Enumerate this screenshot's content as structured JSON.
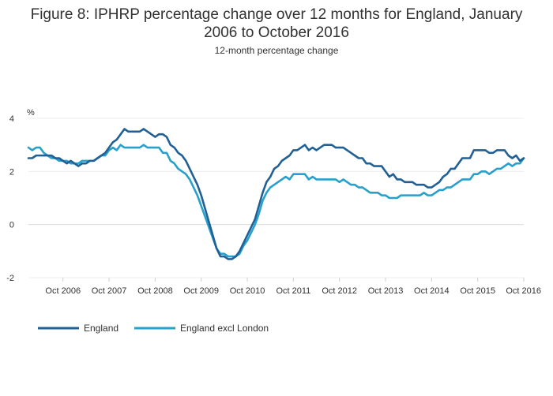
{
  "chart_data": {
    "type": "line",
    "title": "Figure 8: IPHRP percentage change over 12 months for England, January 2006 to October 2016",
    "subtitle": "12-month percentage change",
    "ylabel": "%",
    "xlabel": "",
    "ylim": [
      -2,
      4
    ],
    "yticks": [
      4,
      2,
      0,
      -2
    ],
    "xlim": [
      "2006-01",
      "2016-10"
    ],
    "xticks": [
      {
        "date": "2006-10",
        "label": "Oct 2006"
      },
      {
        "date": "2007-10",
        "label": "Oct 2007"
      },
      {
        "date": "2008-10",
        "label": "Oct 2008"
      },
      {
        "date": "2009-10",
        "label": "Oct 2009"
      },
      {
        "date": "2010-10",
        "label": "Oct 2010"
      },
      {
        "date": "2011-10",
        "label": "Oct 2011"
      },
      {
        "date": "2012-10",
        "label": "Oct 2012"
      },
      {
        "date": "2013-10",
        "label": "Oct 2013"
      },
      {
        "date": "2014-10",
        "label": "Oct 2014"
      },
      {
        "date": "2015-10",
        "label": "Oct 2015"
      },
      {
        "date": "2016-10",
        "label": "Oct 2016"
      }
    ],
    "grid": true,
    "legend_position": "bottom-left",
    "series": [
      {
        "name": "England",
        "color": "#206095",
        "points": [
          [
            "2006-01",
            2.5
          ],
          [
            "2006-02",
            2.5
          ],
          [
            "2006-03",
            2.6
          ],
          [
            "2006-04",
            2.6
          ],
          [
            "2006-05",
            2.6
          ],
          [
            "2006-06",
            2.6
          ],
          [
            "2006-07",
            2.6
          ],
          [
            "2006-08",
            2.5
          ],
          [
            "2006-09",
            2.5
          ],
          [
            "2006-10",
            2.4
          ],
          [
            "2006-11",
            2.3
          ],
          [
            "2006-12",
            2.4
          ],
          [
            "2007-01",
            2.3
          ],
          [
            "2007-02",
            2.2
          ],
          [
            "2007-03",
            2.3
          ],
          [
            "2007-04",
            2.3
          ],
          [
            "2007-05",
            2.4
          ],
          [
            "2007-06",
            2.4
          ],
          [
            "2007-07",
            2.5
          ],
          [
            "2007-08",
            2.6
          ],
          [
            "2007-09",
            2.7
          ],
          [
            "2007-10",
            2.9
          ],
          [
            "2007-11",
            3.1
          ],
          [
            "2007-12",
            3.2
          ],
          [
            "2008-01",
            3.4
          ],
          [
            "2008-02",
            3.6
          ],
          [
            "2008-03",
            3.5
          ],
          [
            "2008-04",
            3.5
          ],
          [
            "2008-05",
            3.5
          ],
          [
            "2008-06",
            3.5
          ],
          [
            "2008-07",
            3.6
          ],
          [
            "2008-08",
            3.5
          ],
          [
            "2008-09",
            3.4
          ],
          [
            "2008-10",
            3.3
          ],
          [
            "2008-11",
            3.4
          ],
          [
            "2008-12",
            3.4
          ],
          [
            "2009-01",
            3.3
          ],
          [
            "2009-02",
            3.0
          ],
          [
            "2009-03",
            2.9
          ],
          [
            "2009-04",
            2.7
          ],
          [
            "2009-05",
            2.6
          ],
          [
            "2009-06",
            2.4
          ],
          [
            "2009-07",
            2.1
          ],
          [
            "2009-08",
            1.8
          ],
          [
            "2009-09",
            1.5
          ],
          [
            "2009-10",
            1.1
          ],
          [
            "2009-11",
            0.6
          ],
          [
            "2009-12",
            0.1
          ],
          [
            "2010-01",
            -0.4
          ],
          [
            "2010-02",
            -0.9
          ],
          [
            "2010-03",
            -1.2
          ],
          [
            "2010-04",
            -1.2
          ],
          [
            "2010-05",
            -1.3
          ],
          [
            "2010-06",
            -1.3
          ],
          [
            "2010-07",
            -1.2
          ],
          [
            "2010-08",
            -1.0
          ],
          [
            "2010-09",
            -0.7
          ],
          [
            "2010-10",
            -0.4
          ],
          [
            "2010-11",
            -0.1
          ],
          [
            "2010-12",
            0.2
          ],
          [
            "2011-01",
            0.7
          ],
          [
            "2011-02",
            1.2
          ],
          [
            "2011-03",
            1.6
          ],
          [
            "2011-04",
            1.8
          ],
          [
            "2011-05",
            2.1
          ],
          [
            "2011-06",
            2.2
          ],
          [
            "2011-07",
            2.4
          ],
          [
            "2011-08",
            2.5
          ],
          [
            "2011-09",
            2.6
          ],
          [
            "2011-10",
            2.8
          ],
          [
            "2011-11",
            2.8
          ],
          [
            "2011-12",
            2.9
          ],
          [
            "2012-01",
            3.0
          ],
          [
            "2012-02",
            2.8
          ],
          [
            "2012-03",
            2.9
          ],
          [
            "2012-04",
            2.8
          ],
          [
            "2012-05",
            2.9
          ],
          [
            "2012-06",
            3.0
          ],
          [
            "2012-07",
            3.0
          ],
          [
            "2012-08",
            3.0
          ],
          [
            "2012-09",
            2.9
          ],
          [
            "2012-10",
            2.9
          ],
          [
            "2012-11",
            2.9
          ],
          [
            "2012-12",
            2.8
          ],
          [
            "2013-01",
            2.7
          ],
          [
            "2013-02",
            2.6
          ],
          [
            "2013-03",
            2.5
          ],
          [
            "2013-04",
            2.5
          ],
          [
            "2013-05",
            2.3
          ],
          [
            "2013-06",
            2.3
          ],
          [
            "2013-07",
            2.2
          ],
          [
            "2013-08",
            2.2
          ],
          [
            "2013-09",
            2.2
          ],
          [
            "2013-10",
            2.0
          ],
          [
            "2013-11",
            1.8
          ],
          [
            "2013-12",
            1.9
          ],
          [
            "2014-01",
            1.7
          ],
          [
            "2014-02",
            1.7
          ],
          [
            "2014-03",
            1.6
          ],
          [
            "2014-04",
            1.6
          ],
          [
            "2014-05",
            1.6
          ],
          [
            "2014-06",
            1.5
          ],
          [
            "2014-07",
            1.5
          ],
          [
            "2014-08",
            1.5
          ],
          [
            "2014-09",
            1.4
          ],
          [
            "2014-10",
            1.4
          ],
          [
            "2014-11",
            1.5
          ],
          [
            "2014-12",
            1.6
          ],
          [
            "2015-01",
            1.8
          ],
          [
            "2015-02",
            1.9
          ],
          [
            "2015-03",
            2.1
          ],
          [
            "2015-04",
            2.1
          ],
          [
            "2015-05",
            2.3
          ],
          [
            "2015-06",
            2.5
          ],
          [
            "2015-07",
            2.5
          ],
          [
            "2015-08",
            2.5
          ],
          [
            "2015-09",
            2.8
          ],
          [
            "2015-10",
            2.8
          ],
          [
            "2015-11",
            2.8
          ],
          [
            "2015-12",
            2.8
          ],
          [
            "2016-01",
            2.7
          ],
          [
            "2016-02",
            2.7
          ],
          [
            "2016-03",
            2.8
          ],
          [
            "2016-04",
            2.8
          ],
          [
            "2016-05",
            2.8
          ],
          [
            "2016-06",
            2.6
          ],
          [
            "2016-07",
            2.5
          ],
          [
            "2016-08",
            2.6
          ],
          [
            "2016-09",
            2.4
          ],
          [
            "2016-10",
            2.5
          ]
        ]
      },
      {
        "name": "England excl London",
        "color": "#27a0cc",
        "points": [
          [
            "2006-01",
            2.9
          ],
          [
            "2006-02",
            2.8
          ],
          [
            "2006-03",
            2.9
          ],
          [
            "2006-04",
            2.9
          ],
          [
            "2006-05",
            2.7
          ],
          [
            "2006-06",
            2.6
          ],
          [
            "2006-07",
            2.5
          ],
          [
            "2006-08",
            2.5
          ],
          [
            "2006-09",
            2.4
          ],
          [
            "2006-10",
            2.4
          ],
          [
            "2006-11",
            2.4
          ],
          [
            "2006-12",
            2.3
          ],
          [
            "2007-01",
            2.3
          ],
          [
            "2007-02",
            2.3
          ],
          [
            "2007-03",
            2.4
          ],
          [
            "2007-04",
            2.4
          ],
          [
            "2007-05",
            2.4
          ],
          [
            "2007-06",
            2.4
          ],
          [
            "2007-07",
            2.5
          ],
          [
            "2007-08",
            2.6
          ],
          [
            "2007-09",
            2.6
          ],
          [
            "2007-10",
            2.8
          ],
          [
            "2007-11",
            2.9
          ],
          [
            "2007-12",
            2.8
          ],
          [
            "2008-01",
            3.0
          ],
          [
            "2008-02",
            2.9
          ],
          [
            "2008-03",
            2.9
          ],
          [
            "2008-04",
            2.9
          ],
          [
            "2008-05",
            2.9
          ],
          [
            "2008-06",
            2.9
          ],
          [
            "2008-07",
            3.0
          ],
          [
            "2008-08",
            2.9
          ],
          [
            "2008-09",
            2.9
          ],
          [
            "2008-10",
            2.9
          ],
          [
            "2008-11",
            2.9
          ],
          [
            "2008-12",
            2.7
          ],
          [
            "2009-01",
            2.7
          ],
          [
            "2009-02",
            2.4
          ],
          [
            "2009-03",
            2.3
          ],
          [
            "2009-04",
            2.1
          ],
          [
            "2009-05",
            2.0
          ],
          [
            "2009-06",
            1.9
          ],
          [
            "2009-07",
            1.7
          ],
          [
            "2009-08",
            1.4
          ],
          [
            "2009-09",
            1.1
          ],
          [
            "2009-10",
            0.7
          ],
          [
            "2009-11",
            0.3
          ],
          [
            "2009-12",
            -0.1
          ],
          [
            "2010-01",
            -0.5
          ],
          [
            "2010-02",
            -0.9
          ],
          [
            "2010-03",
            -1.1
          ],
          [
            "2010-04",
            -1.1
          ],
          [
            "2010-05",
            -1.2
          ],
          [
            "2010-06",
            -1.2
          ],
          [
            "2010-07",
            -1.2
          ],
          [
            "2010-08",
            -1.1
          ],
          [
            "2010-09",
            -0.8
          ],
          [
            "2010-10",
            -0.6
          ],
          [
            "2010-11",
            -0.3
          ],
          [
            "2010-12",
            0.0
          ],
          [
            "2011-01",
            0.4
          ],
          [
            "2011-02",
            0.9
          ],
          [
            "2011-03",
            1.2
          ],
          [
            "2011-04",
            1.4
          ],
          [
            "2011-05",
            1.5
          ],
          [
            "2011-06",
            1.6
          ],
          [
            "2011-07",
            1.7
          ],
          [
            "2011-08",
            1.8
          ],
          [
            "2011-09",
            1.7
          ],
          [
            "2011-10",
            1.9
          ],
          [
            "2011-11",
            1.9
          ],
          [
            "2011-12",
            1.9
          ],
          [
            "2012-01",
            1.9
          ],
          [
            "2012-02",
            1.7
          ],
          [
            "2012-03",
            1.8
          ],
          [
            "2012-04",
            1.7
          ],
          [
            "2012-05",
            1.7
          ],
          [
            "2012-06",
            1.7
          ],
          [
            "2012-07",
            1.7
          ],
          [
            "2012-08",
            1.7
          ],
          [
            "2012-09",
            1.7
          ],
          [
            "2012-10",
            1.6
          ],
          [
            "2012-11",
            1.7
          ],
          [
            "2012-12",
            1.6
          ],
          [
            "2013-01",
            1.5
          ],
          [
            "2013-02",
            1.5
          ],
          [
            "2013-03",
            1.4
          ],
          [
            "2013-04",
            1.4
          ],
          [
            "2013-05",
            1.3
          ],
          [
            "2013-06",
            1.2
          ],
          [
            "2013-07",
            1.2
          ],
          [
            "2013-08",
            1.2
          ],
          [
            "2013-09",
            1.1
          ],
          [
            "2013-10",
            1.1
          ],
          [
            "2013-11",
            1.0
          ],
          [
            "2013-12",
            1.0
          ],
          [
            "2014-01",
            1.0
          ],
          [
            "2014-02",
            1.1
          ],
          [
            "2014-03",
            1.1
          ],
          [
            "2014-04",
            1.1
          ],
          [
            "2014-05",
            1.1
          ],
          [
            "2014-06",
            1.1
          ],
          [
            "2014-07",
            1.1
          ],
          [
            "2014-08",
            1.2
          ],
          [
            "2014-09",
            1.1
          ],
          [
            "2014-10",
            1.1
          ],
          [
            "2014-11",
            1.2
          ],
          [
            "2014-12",
            1.3
          ],
          [
            "2015-01",
            1.3
          ],
          [
            "2015-02",
            1.4
          ],
          [
            "2015-03",
            1.4
          ],
          [
            "2015-04",
            1.5
          ],
          [
            "2015-05",
            1.6
          ],
          [
            "2015-06",
            1.7
          ],
          [
            "2015-07",
            1.7
          ],
          [
            "2015-08",
            1.7
          ],
          [
            "2015-09",
            1.9
          ],
          [
            "2015-10",
            1.9
          ],
          [
            "2015-11",
            2.0
          ],
          [
            "2015-12",
            2.0
          ],
          [
            "2016-01",
            1.9
          ],
          [
            "2016-02",
            2.0
          ],
          [
            "2016-03",
            2.1
          ],
          [
            "2016-04",
            2.1
          ],
          [
            "2016-05",
            2.2
          ],
          [
            "2016-06",
            2.3
          ],
          [
            "2016-07",
            2.2
          ],
          [
            "2016-08",
            2.3
          ],
          [
            "2016-09",
            2.3
          ],
          [
            "2016-10",
            2.5
          ]
        ]
      }
    ]
  }
}
